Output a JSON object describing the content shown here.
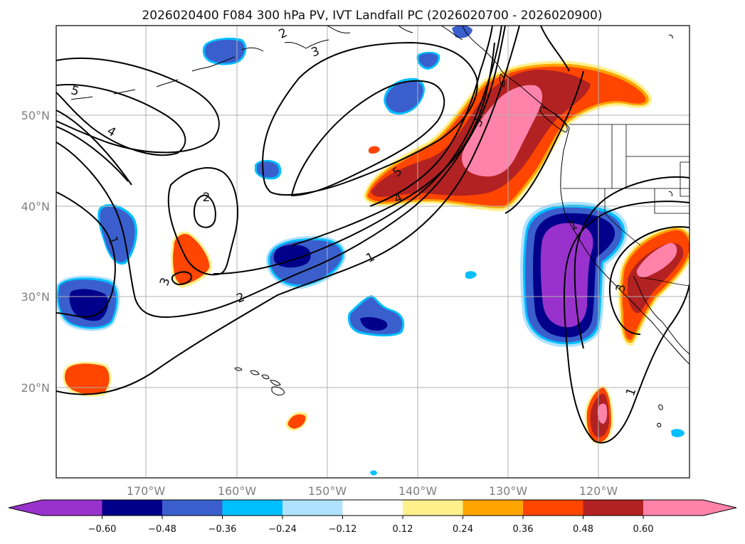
{
  "title": "2026020400 F084 300 hPa PV, IVT Landfall PC (2026020700 - 2026020900)",
  "lon_labels": [
    "170°W",
    "160°W",
    "150°W",
    "140°W",
    "130°W",
    "120°W"
  ],
  "lat_labels": [
    "50°N",
    "40°N",
    "30°N",
    "20°N"
  ],
  "colorbar": {
    "ticks": [
      "−0.60",
      "−0.48",
      "−0.36",
      "−0.24",
      "−0.12",
      "0.12",
      "0.24",
      "0.36",
      "0.48",
      "0.60"
    ],
    "colors": [
      "#9932cc",
      "#00008b",
      "#3a5fcd",
      "#00bfff",
      "#b0e2ff",
      "#ffffff",
      "#fff08c",
      "#ffa500",
      "#ff4500",
      "#b22222",
      "#ff82ab",
      "#ff82ab"
    ]
  },
  "contour_labels": {
    "c1a": "1",
    "c1b": "1",
    "c1c": "1",
    "c1d": "1",
    "c2a": "2",
    "c2b": "2",
    "c2c": "2",
    "c3a": "3",
    "c3b": "3",
    "c3c": "3",
    "c3d": "3",
    "c4a": "4",
    "c4b": "4",
    "c5a": "5",
    "c5b": "5"
  }
}
